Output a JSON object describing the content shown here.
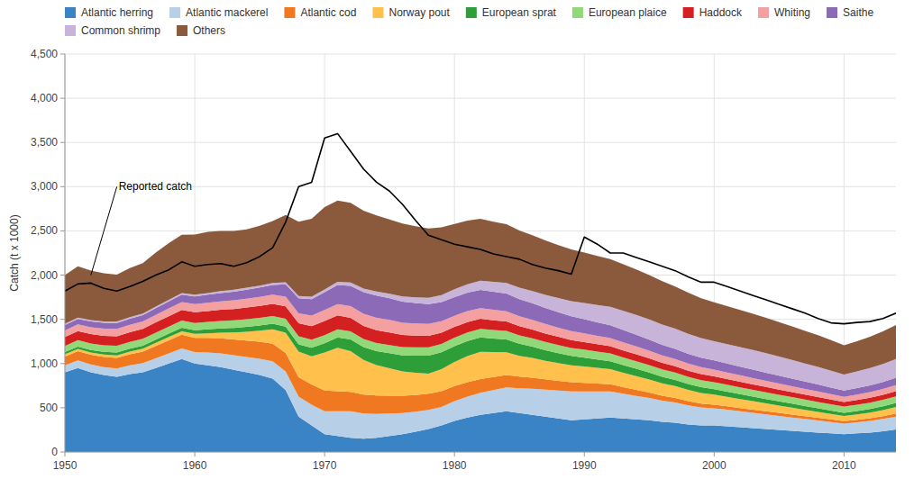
{
  "chart_data": {
    "type": "area",
    "stacked": true,
    "grid": true,
    "legend": "top",
    "ylabel": "Catch (t x 1000)",
    "xlim": [
      1950,
      2014
    ],
    "xticks": [
      1950,
      1960,
      1970,
      1980,
      1990,
      2000,
      2010
    ],
    "ylim": [
      0,
      4500
    ],
    "yticks": [
      0,
      500,
      {
        "value": 1000,
        "label": "1,000"
      },
      {
        "value": 1500,
        "label": "1,500"
      },
      {
        "value": 2000,
        "label": "2,000"
      },
      {
        "value": 2500,
        "label": "2,500"
      },
      {
        "value": 3000,
        "label": "3,000"
      },
      {
        "value": 3500,
        "label": "3,500"
      },
      {
        "value": 4000,
        "label": "4,000"
      },
      {
        "value": 4500,
        "label": "4,500"
      }
    ],
    "x": [
      1950,
      1951,
      1952,
      1953,
      1954,
      1955,
      1956,
      1957,
      1958,
      1959,
      1960,
      1961,
      1962,
      1963,
      1964,
      1965,
      1966,
      1967,
      1968,
      1969,
      1970,
      1971,
      1972,
      1973,
      1974,
      1975,
      1976,
      1977,
      1978,
      1979,
      1980,
      1981,
      1982,
      1983,
      1984,
      1985,
      1986,
      1987,
      1988,
      1989,
      1990,
      1991,
      1992,
      1993,
      1994,
      1995,
      1996,
      1997,
      1998,
      1999,
      2000,
      2001,
      2002,
      2003,
      2004,
      2005,
      2006,
      2007,
      2008,
      2009,
      2010,
      2011,
      2012,
      2013,
      2014
    ],
    "series": [
      {
        "name": "Atlantic herring",
        "color": "#3a84c6",
        "values": [
          900,
          950,
          900,
          870,
          850,
          880,
          900,
          950,
          1000,
          1050,
          1000,
          980,
          960,
          930,
          900,
          870,
          830,
          700,
          400,
          300,
          200,
          180,
          160,
          150,
          160,
          180,
          200,
          230,
          260,
          300,
          350,
          390,
          420,
          440,
          460,
          440,
          420,
          400,
          380,
          360,
          370,
          380,
          390,
          380,
          370,
          360,
          340,
          330,
          310,
          300,
          300,
          290,
          280,
          270,
          260,
          250,
          240,
          230,
          220,
          210,
          200,
          210,
          220,
          235,
          255
        ]
      },
      {
        "name": "Atlantic mackerel",
        "color": "#b8cfe8",
        "values": [
          80,
          85,
          90,
          90,
          95,
          100,
          105,
          110,
          115,
          120,
          130,
          145,
          155,
          165,
          175,
          185,
          195,
          210,
          225,
          235,
          260,
          280,
          300,
          285,
          270,
          255,
          240,
          225,
          215,
          210,
          225,
          235,
          250,
          260,
          270,
          280,
          295,
          305,
          315,
          325,
          315,
          305,
          295,
          280,
          265,
          250,
          240,
          230,
          218,
          205,
          195,
          188,
          180,
          173,
          165,
          158,
          150,
          143,
          136,
          128,
          120,
          125,
          130,
          138,
          145
        ]
      },
      {
        "name": "Atlantic cod",
        "color": "#f07820",
        "values": [
          100,
          105,
          110,
          115,
          120,
          125,
          130,
          140,
          148,
          155,
          160,
          165,
          170,
          178,
          185,
          192,
          198,
          210,
          220,
          228,
          235,
          228,
          220,
          215,
          208,
          202,
          196,
          190,
          185,
          178,
          170,
          163,
          155,
          148,
          140,
          133,
          126,
          118,
          110,
          103,
          96,
          88,
          81,
          74,
          68,
          62,
          56,
          51,
          47,
          43,
          40,
          39,
          37,
          36,
          35,
          34,
          33,
          32,
          31,
          30,
          29,
          30,
          31,
          32,
          34
        ]
      },
      {
        "name": "Norway pout",
        "color": "#ffc04c",
        "values": [
          25,
          25,
          26,
          27,
          28,
          30,
          32,
          35,
          38,
          40,
          45,
          52,
          65,
          78,
          100,
          125,
          165,
          230,
          290,
          320,
          430,
          490,
          460,
          390,
          345,
          310,
          275,
          250,
          225,
          248,
          272,
          296,
          308,
          282,
          258,
          234,
          222,
          208,
          200,
          192,
          186,
          178,
          170,
          163,
          156,
          148,
          141,
          134,
          127,
          120,
          113,
          107,
          101,
          95,
          89,
          83,
          78,
          72,
          67,
          62,
          58,
          61,
          65,
          69,
          74
        ]
      },
      {
        "name": "European sprat",
        "color": "#2e9e38",
        "values": [
          25,
          27,
          28,
          30,
          32,
          33,
          34,
          36,
          37,
          40,
          42,
          45,
          48,
          52,
          55,
          58,
          62,
          68,
          82,
          95,
          105,
          118,
          132,
          145,
          158,
          170,
          182,
          195,
          205,
          192,
          180,
          172,
          163,
          154,
          145,
          137,
          128,
          120,
          113,
          106,
          100,
          95,
          90,
          86,
          82,
          78,
          74,
          70,
          67,
          64,
          61,
          58,
          55,
          52,
          50,
          47,
          45,
          42,
          40,
          38,
          36,
          38,
          40,
          43,
          46
        ]
      },
      {
        "name": "European plaice",
        "color": "#90d878",
        "values": [
          70,
          72,
          74,
          75,
          76,
          77,
          78,
          79,
          80,
          81,
          82,
          83,
          84,
          85,
          86,
          87,
          88,
          89,
          90,
          91,
          91,
          92,
          92,
          92,
          92,
          93,
          93,
          94,
          94,
          94,
          95,
          95,
          96,
          96,
          96,
          95,
          94,
          93,
          92,
          91,
          90,
          89,
          88,
          87,
          86,
          85,
          84,
          83,
          82,
          81,
          80,
          79,
          78,
          77,
          76,
          75,
          74,
          73,
          72,
          71,
          70,
          71,
          72,
          73,
          75
        ]
      },
      {
        "name": "Haddock",
        "color": "#d42020",
        "values": [
          100,
          102,
          105,
          107,
          108,
          110,
          112,
          115,
          118,
          120,
          122,
          124,
          126,
          129,
          132,
          135,
          137,
          140,
          148,
          155,
          160,
          157,
          153,
          149,
          145,
          141,
          137,
          133,
          130,
          126,
          122,
          118,
          114,
          110,
          107,
          103,
          100,
          96,
          92,
          89,
          86,
          83,
          81,
          79,
          77,
          75,
          73,
          71,
          69,
          67,
          65,
          63,
          62,
          61,
          60,
          58,
          57,
          56,
          55,
          53,
          52,
          53,
          55,
          57,
          59
        ]
      },
      {
        "name": "Whiting",
        "color": "#f4a0a0",
        "values": [
          75,
          77,
          78,
          80,
          82,
          83,
          85,
          86,
          88,
          90,
          92,
          94,
          96,
          98,
          100,
          102,
          104,
          108,
          113,
          118,
          125,
          128,
          132,
          136,
          139,
          142,
          139,
          136,
          133,
          130,
          127,
          124,
          121,
          118,
          115,
          112,
          110,
          107,
          104,
          101,
          98,
          95,
          93,
          91,
          89,
          87,
          85,
          83,
          81,
          79,
          77,
          75,
          74,
          72,
          70,
          68,
          67,
          65,
          63,
          61,
          59,
          61,
          63,
          65,
          67
        ]
      },
      {
        "name": "Saithe",
        "color": "#8c6ab8",
        "values": [
          60,
          62,
          64,
          66,
          68,
          70,
          72,
          75,
          78,
          82,
          86,
          90,
          94,
          98,
          102,
          106,
          110,
          140,
          170,
          185,
          200,
          215,
          230,
          245,
          252,
          245,
          238,
          231,
          224,
          217,
          210,
          208,
          206,
          204,
          200,
          195,
          188,
          181,
          174,
          167,
          160,
          153,
          146,
          139,
          132,
          125,
          118,
          114,
          110,
          107,
          104,
          101,
          98,
          95,
          92,
          89,
          86,
          83,
          80,
          76,
          72,
          74,
          77,
          80,
          84
        ]
      },
      {
        "name": "Common shrimp",
        "color": "#c8b4d8",
        "values": [
          15,
          15,
          16,
          16,
          17,
          17,
          18,
          18,
          19,
          19,
          20,
          20,
          21,
          21,
          22,
          22,
          23,
          25,
          27,
          29,
          32,
          35,
          38,
          42,
          46,
          52,
          58,
          65,
          72,
          80,
          88,
          96,
          104,
          112,
          120,
          128,
          136,
          148,
          160,
          172,
          184,
          196,
          208,
          216,
          224,
          228,
          230,
          228,
          225,
          221,
          218,
          220,
          222,
          222,
          220,
          216,
          210,
          204,
          198,
          190,
          180,
          188,
          196,
          204,
          212
        ]
      },
      {
        "name": "Others",
        "color": "#8b5a3c",
        "values": [
          550,
          580,
          560,
          545,
          530,
          555,
          570,
          610,
          640,
          660,
          680,
          690,
          680,
          665,
          660,
          675,
          700,
          760,
          840,
          880,
          930,
          920,
          900,
          880,
          860,
          840,
          825,
          805,
          785,
          765,
          740,
          720,
          700,
          680,
          665,
          648,
          632,
          616,
          600,
          585,
          570,
          555,
          540,
          528,
          515,
          502,
          490,
          478,
          465,
          452,
          440,
          430,
          420,
          410,
          400,
          390,
          380,
          370,
          358,
          345,
          330,
          342,
          355,
          368,
          385
        ]
      },
      {
        "type": "line",
        "color": "black",
        "values": [
          1820,
          1900,
          1910,
          1850,
          1820,
          1870,
          1930,
          2000,
          2060,
          2150,
          2100,
          2120,
          2130,
          2100,
          2140,
          2210,
          2310,
          2600,
          3000,
          3050,
          3550,
          3600,
          3400,
          3200,
          3050,
          2950,
          2800,
          2620,
          2450,
          2400,
          2350,
          2320,
          2290,
          2240,
          2210,
          2180,
          2120,
          2080,
          2050,
          2010,
          2430,
          2350,
          2250,
          2250,
          2200,
          2150,
          2100,
          2050,
          1980,
          1920,
          1920,
          1870,
          1820,
          1770,
          1720,
          1670,
          1620,
          1570,
          1510,
          1460,
          1450,
          1465,
          1475,
          1510,
          1570
        ]
      }
    ],
    "annotations": [
      {
        "text": "Reported catch",
        "x": 1952,
        "y": 2000,
        "text_x": 1954,
        "text_y": 3000
      }
    ]
  }
}
